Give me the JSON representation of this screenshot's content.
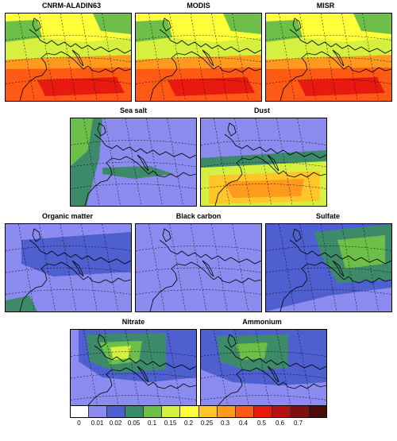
{
  "panels": [
    {
      "key": "cnrm",
      "title": "CNRM-ALADIN63",
      "style": "aod"
    },
    {
      "key": "modis",
      "title": "MODIS",
      "style": "aod"
    },
    {
      "key": "misr",
      "title": "MISR",
      "style": "aod"
    },
    {
      "key": "seasalt",
      "title": "Sea salt",
      "style": "seasalt"
    },
    {
      "key": "dust",
      "title": "Dust",
      "style": "dust"
    },
    {
      "key": "om",
      "title": "Organic matter",
      "style": "om"
    },
    {
      "key": "bc",
      "title": "Black carbon",
      "style": "bc"
    },
    {
      "key": "sulfate",
      "title": "Sulfate",
      "style": "sulfate"
    },
    {
      "key": "nitrate",
      "title": "Nitrate",
      "style": "nitrate"
    },
    {
      "key": "ammonium",
      "title": "Ammonium",
      "style": "ammonium"
    }
  ],
  "colorbar": {
    "labels": [
      "0",
      "0.01",
      "0.02",
      "0.05",
      "0.1",
      "0.15",
      "0.2",
      "0.25",
      "0.3",
      "0.4",
      "0.5",
      "0.6",
      "0.7"
    ],
    "colors": [
      "#ffffff",
      "#8c8cf0",
      "#4e5fd0",
      "#3d8a6a",
      "#6dbf4a",
      "#d6f040",
      "#ffff3a",
      "#ffc62a",
      "#ff9a1e",
      "#ff5a14",
      "#e81a10",
      "#b81010",
      "#801010",
      "#4a0b0b"
    ]
  }
}
